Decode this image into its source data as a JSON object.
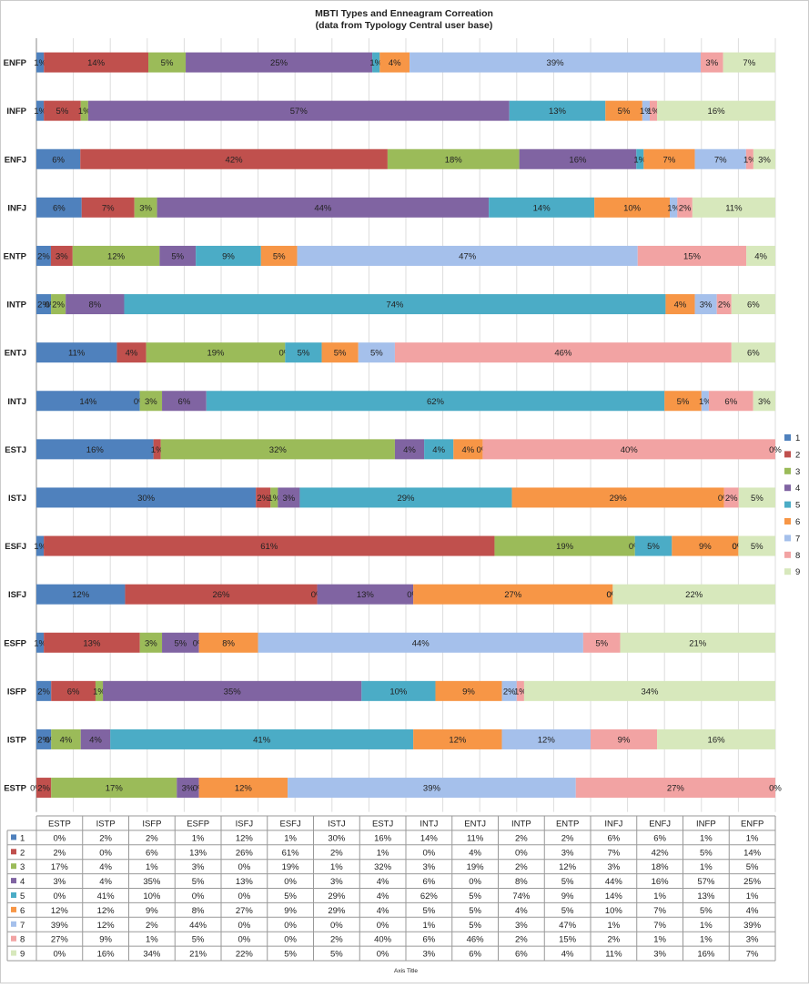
{
  "chart_data": {
    "type": "bar",
    "orientation": "horizontal-stacked-100",
    "title": "MBTI Types and Enneagram Correation",
    "subtitle": "(data from Typology Central user base)",
    "xlabel": "Axis Title",
    "grid": true,
    "legend_position": "right",
    "categories": [
      "ENFP",
      "INFP",
      "ENFJ",
      "INFJ",
      "ENTP",
      "INTP",
      "ENTJ",
      "INTJ",
      "ESTJ",
      "ISTJ",
      "ESFJ",
      "ISFJ",
      "ESFP",
      "ISFP",
      "ISTP",
      "ESTP"
    ],
    "table_columns": [
      "ESTP",
      "ISTP",
      "ISFP",
      "ESFP",
      "ISFJ",
      "ESFJ",
      "ISTJ",
      "ESTJ",
      "INTJ",
      "ENTJ",
      "INTP",
      "ENTP",
      "INFJ",
      "ENFJ",
      "INFP",
      "ENFP"
    ],
    "series": [
      {
        "name": "1",
        "color": "#4f81bd",
        "values": [
          1,
          1,
          6,
          6,
          2,
          2,
          11,
          14,
          16,
          30,
          1,
          12,
          1,
          2,
          2,
          0
        ]
      },
      {
        "name": "2",
        "color": "#c0504d",
        "values": [
          14,
          5,
          42,
          7,
          3,
          0,
          4,
          0,
          1,
          2,
          61,
          26,
          13,
          6,
          0,
          2
        ]
      },
      {
        "name": "3",
        "color": "#9bbb59",
        "values": [
          5,
          1,
          18,
          3,
          12,
          2,
          19,
          3,
          32,
          1,
          19,
          0,
          3,
          1,
          4,
          17
        ]
      },
      {
        "name": "4",
        "color": "#8064a2",
        "values": [
          25,
          57,
          16,
          44,
          5,
          8,
          0,
          6,
          4,
          3,
          0,
          13,
          5,
          35,
          4,
          3
        ]
      },
      {
        "name": "5",
        "color": "#4bacc6",
        "values": [
          1,
          13,
          1,
          14,
          9,
          74,
          5,
          62,
          4,
          29,
          5,
          0,
          0,
          10,
          41,
          0
        ]
      },
      {
        "name": "6",
        "color": "#f79646",
        "values": [
          4,
          5,
          7,
          10,
          5,
          4,
          5,
          5,
          4,
          29,
          9,
          27,
          8,
          9,
          12,
          12
        ]
      },
      {
        "name": "7",
        "color": "#a5c0eb",
        "values": [
          39,
          1,
          7,
          1,
          47,
          3,
          5,
          1,
          0,
          0,
          0,
          0,
          44,
          2,
          12,
          39
        ]
      },
      {
        "name": "8",
        "color": "#f2a3a3",
        "values": [
          3,
          1,
          1,
          2,
          15,
          2,
          46,
          6,
          40,
          2,
          0,
          0,
          5,
          1,
          9,
          27
        ]
      },
      {
        "name": "9",
        "color": "#d7e8bc",
        "values": [
          7,
          16,
          3,
          11,
          4,
          6,
          6,
          3,
          0,
          5,
          5,
          22,
          21,
          34,
          16,
          0
        ]
      }
    ],
    "segment_labels": [
      [
        "1%",
        "14%",
        "5%",
        "25%",
        "1%",
        "4%",
        "39%",
        "3%",
        "7%"
      ],
      [
        "1%",
        "5%",
        "1%",
        "57%",
        "13%",
        "5%",
        "1%",
        "1%",
        "16%"
      ],
      [
        "6%",
        "42%",
        "18%",
        "16%",
        "1%",
        "7%",
        "7%",
        "1%",
        "3%"
      ],
      [
        "6%",
        "7%",
        "3%",
        "44%",
        "14%",
        "10%",
        "1%",
        "2%",
        "11%"
      ],
      [
        "2%",
        "3%",
        "12%",
        "5%",
        "9%",
        "5%",
        "47%",
        "15%",
        "4%"
      ],
      [
        "2%",
        "0%",
        "2%",
        "8%",
        "74%",
        "4%",
        "3%",
        "2%",
        "6%"
      ],
      [
        "11%",
        "4%",
        "19%",
        "0%",
        "5%",
        "5%",
        "5%",
        "46%",
        "6%"
      ],
      [
        "14%",
        "0%",
        "3%",
        "6%",
        "62%",
        "5%",
        "1%",
        "6%",
        "3%"
      ],
      [
        "16%",
        "1%",
        "32%",
        "4%",
        "4%",
        "4%",
        "0%",
        "40%",
        "0%"
      ],
      [
        "30%",
        "2%",
        "1%",
        "3%",
        "29%",
        "29%",
        "0%",
        "2%",
        "5%"
      ],
      [
        "1%",
        "61%",
        "19%",
        "0%",
        "5%",
        "9%",
        "0%",
        "0%",
        "5%"
      ],
      [
        "12%",
        "26%",
        "0%",
        "13%",
        "0%",
        "27%",
        "0%",
        "0%",
        "22%"
      ],
      [
        "1%",
        "13%",
        "3%",
        "5%",
        "0%",
        "8%",
        "44%",
        "5%",
        "21%"
      ],
      [
        "2%",
        "6%",
        "1%",
        "35%",
        "10%",
        "9%",
        "2%",
        "1%",
        "34%"
      ],
      [
        "2%",
        "0%",
        "4%",
        "4%",
        "41%",
        "12%",
        "12%",
        "9%",
        "16%"
      ],
      [
        "0%",
        "2%",
        "17%",
        "3%",
        "0%",
        "12%",
        "39%",
        "27%",
        "0%"
      ]
    ],
    "table_rows": [
      {
        "name": "1",
        "cells": [
          "0%",
          "2%",
          "2%",
          "1%",
          "12%",
          "1%",
          "30%",
          "16%",
          "14%",
          "11%",
          "2%",
          "2%",
          "6%",
          "6%",
          "1%",
          "1%"
        ]
      },
      {
        "name": "2",
        "cells": [
          "2%",
          "0%",
          "6%",
          "13%",
          "26%",
          "61%",
          "2%",
          "1%",
          "0%",
          "4%",
          "0%",
          "3%",
          "7%",
          "42%",
          "5%",
          "14%"
        ]
      },
      {
        "name": "3",
        "cells": [
          "17%",
          "4%",
          "1%",
          "3%",
          "0%",
          "19%",
          "1%",
          "32%",
          "3%",
          "19%",
          "2%",
          "12%",
          "3%",
          "18%",
          "1%",
          "5%"
        ]
      },
      {
        "name": "4",
        "cells": [
          "3%",
          "4%",
          "35%",
          "5%",
          "13%",
          "0%",
          "3%",
          "4%",
          "6%",
          "0%",
          "8%",
          "5%",
          "44%",
          "16%",
          "57%",
          "25%"
        ]
      },
      {
        "name": "5",
        "cells": [
          "0%",
          "41%",
          "10%",
          "0%",
          "0%",
          "5%",
          "29%",
          "4%",
          "62%",
          "5%",
          "74%",
          "9%",
          "14%",
          "1%",
          "13%",
          "1%"
        ]
      },
      {
        "name": "6",
        "cells": [
          "12%",
          "12%",
          "9%",
          "8%",
          "27%",
          "9%",
          "29%",
          "4%",
          "5%",
          "5%",
          "4%",
          "5%",
          "10%",
          "7%",
          "5%",
          "4%"
        ]
      },
      {
        "name": "7",
        "cells": [
          "39%",
          "12%",
          "2%",
          "44%",
          "0%",
          "0%",
          "0%",
          "0%",
          "1%",
          "5%",
          "3%",
          "47%",
          "1%",
          "7%",
          "1%",
          "39%"
        ]
      },
      {
        "name": "8",
        "cells": [
          "27%",
          "9%",
          "1%",
          "5%",
          "0%",
          "0%",
          "2%",
          "40%",
          "6%",
          "46%",
          "2%",
          "15%",
          "2%",
          "1%",
          "1%",
          "3%"
        ]
      },
      {
        "name": "9",
        "cells": [
          "0%",
          "16%",
          "34%",
          "21%",
          "22%",
          "5%",
          "5%",
          "0%",
          "3%",
          "6%",
          "6%",
          "4%",
          "11%",
          "3%",
          "16%",
          "7%"
        ]
      }
    ]
  }
}
